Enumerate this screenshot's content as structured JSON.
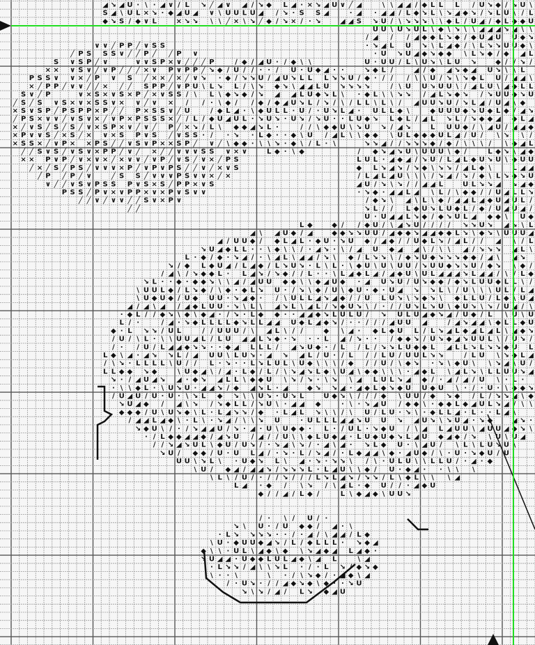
{
  "chart": {
    "kind": "cross-stitch pattern grid",
    "major_line_every_cells": 10,
    "symbols": [
      "U",
      "↘",
      "L",
      "\\",
      "◆",
      "◢",
      "∕",
      "·",
      "∨",
      "×",
      "S",
      "╱",
      "P",
      "o"
    ],
    "center_markers": {
      "horizontal_arrow": "left",
      "vertical_arrow": "bottom"
    },
    "colors": {
      "grid": "#9a9a9a",
      "major_grid": "#555555",
      "center_line": "#22dd22",
      "ink": "#111111",
      "background": "#f6f6f6"
    }
  }
}
